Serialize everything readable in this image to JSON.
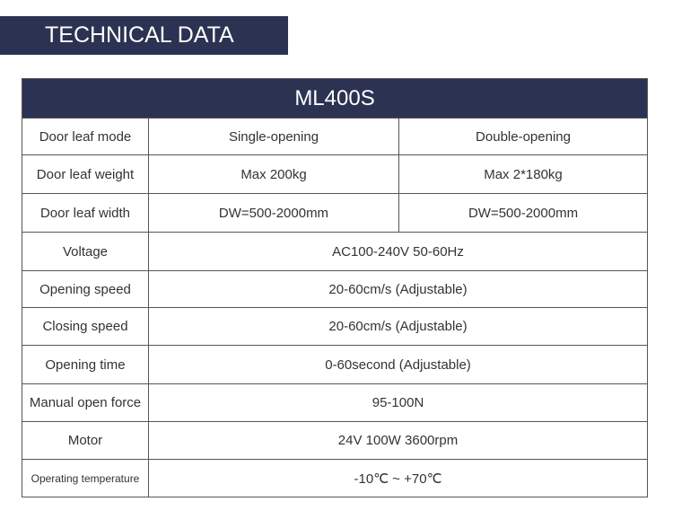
{
  "header": {
    "title": "TECHNICAL DATA"
  },
  "table": {
    "title": "ML400S",
    "rows": [
      [
        "Door leaf mode",
        "Single-opening",
        "Double-opening"
      ],
      [
        "Door leaf weight",
        "Max 200kg",
        "Max 2*180kg"
      ],
      [
        "Door leaf width",
        "DW=500-2000mm",
        "DW=500-2000mm"
      ],
      [
        "Voltage",
        "AC100-240V 50-60Hz"
      ],
      [
        "Opening speed",
        "20-60cm/s (Adjustable)"
      ],
      [
        "Closing speed",
        "20-60cm/s (Adjustable)"
      ],
      [
        "Opening time",
        "0-60second (Adjustable)"
      ],
      [
        "Manual open force",
        "95-100N"
      ],
      [
        "Motor",
        "24V 100W 3600rpm"
      ],
      [
        "Operating temperature",
        "-10℃ ~ +70℃"
      ]
    ]
  }
}
